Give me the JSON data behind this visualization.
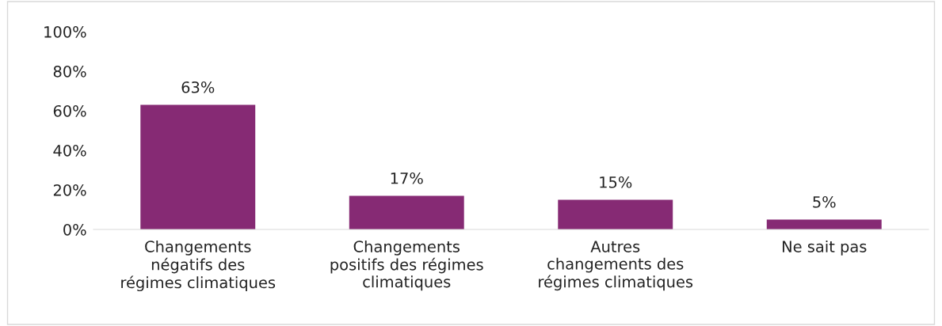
{
  "chart_data": {
    "type": "bar",
    "categories": [
      "Changements\nnégatifs des\nrégimes climatiques",
      "Changements\npositifs des régimes\nclimatiques",
      "Autres\nchangements des\nrégimes climatiques",
      "Ne sait pas"
    ],
    "values": [
      63,
      17,
      15,
      5
    ],
    "color": "#862a74",
    "value_labels": [
      "63%",
      "17%",
      "15%",
      "5%"
    ],
    "ylim": [
      0,
      100
    ],
    "yticks": [
      {
        "value": 0,
        "label": "0%"
      },
      {
        "value": 20,
        "label": "20%"
      },
      {
        "value": 40,
        "label": "40%"
      },
      {
        "value": 60,
        "label": "60%"
      },
      {
        "value": 80,
        "label": "80%"
      },
      {
        "value": 100,
        "label": "100%"
      }
    ],
    "grid": false,
    "legend": false
  }
}
